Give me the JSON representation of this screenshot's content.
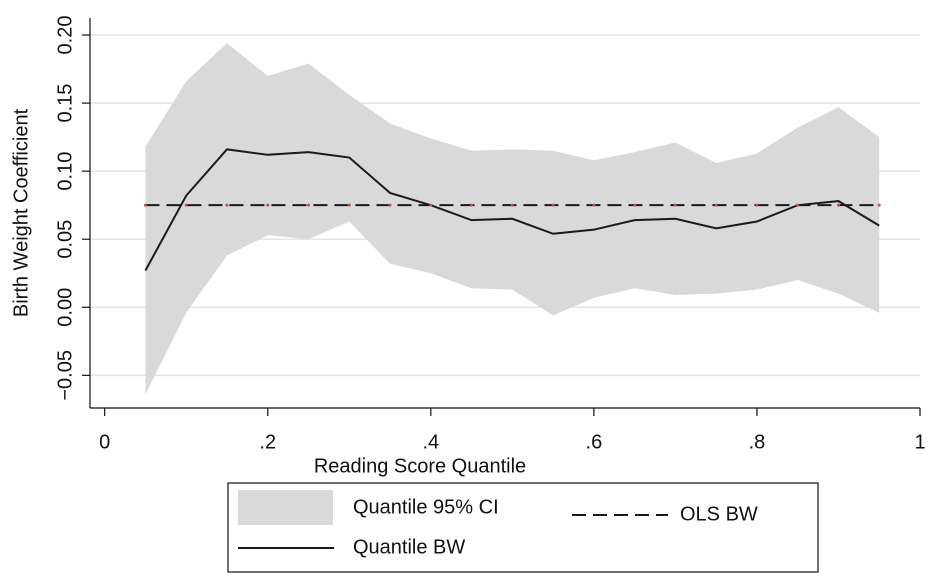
{
  "chart_data": {
    "type": "line",
    "x_label": "Reading Score Quantile",
    "y_label": "Birth Weight Coefficient",
    "x": [
      0.05,
      0.1,
      0.15,
      0.2,
      0.25,
      0.3,
      0.35,
      0.4,
      0.45,
      0.5,
      0.55,
      0.6,
      0.65,
      0.7,
      0.75,
      0.8,
      0.85,
      0.9,
      0.95
    ],
    "series": [
      {
        "name": "Quantile 95% CI",
        "style": "band",
        "color": "#d9d9d9",
        "upper": [
          0.118,
          0.166,
          0.194,
          0.17,
          0.179,
          0.156,
          0.135,
          0.124,
          0.115,
          0.116,
          0.115,
          0.108,
          0.114,
          0.121,
          0.106,
          0.113,
          0.132,
          0.147,
          0.125
        ],
        "lower": [
          -0.064,
          -0.004,
          0.038,
          0.053,
          0.05,
          0.063,
          0.032,
          0.025,
          0.014,
          0.013,
          -0.006,
          0.007,
          0.014,
          0.009,
          0.01,
          0.013,
          0.02,
          0.01,
          -0.004
        ]
      },
      {
        "name": "Quantile BW",
        "style": "solid",
        "color": "#1a1a1a",
        "values": [
          0.027,
          0.082,
          0.116,
          0.112,
          0.114,
          0.11,
          0.084,
          0.075,
          0.064,
          0.065,
          0.054,
          0.057,
          0.064,
          0.065,
          0.058,
          0.063,
          0.075,
          0.078,
          0.06
        ]
      },
      {
        "name": "OLS BW",
        "style": "dashed",
        "color": "#1a1a1a",
        "marker_color": "#c0504d",
        "values": [
          0.075,
          0.075,
          0.075,
          0.075,
          0.075,
          0.075,
          0.075,
          0.075,
          0.075,
          0.075,
          0.075,
          0.075,
          0.075,
          0.075,
          0.075,
          0.075,
          0.075,
          0.075,
          0.075
        ]
      }
    ],
    "xlim": [
      -0.018,
      1.0
    ],
    "ylim": [
      -0.074,
      0.2125
    ],
    "xticks": [
      0,
      {
        "value": 0.2,
        "label": ".2"
      },
      {
        "value": 0.4,
        "label": ".4"
      },
      {
        "value": 0.6,
        "label": ".6"
      },
      {
        "value": 0.8,
        "label": ".8"
      },
      1
    ],
    "yticks": [
      {
        "value": -0.05,
        "label": "−0.05"
      },
      {
        "value": 0,
        "label": "0.00"
      },
      {
        "value": 0.05,
        "label": "0.05"
      },
      {
        "value": 0.1,
        "label": "0.10"
      },
      {
        "value": 0.15,
        "label": "0.15"
      },
      {
        "value": 0.2,
        "label": "0.20"
      }
    ],
    "grid": true,
    "grid_color": "#dce8ec",
    "legend": "bottom"
  }
}
